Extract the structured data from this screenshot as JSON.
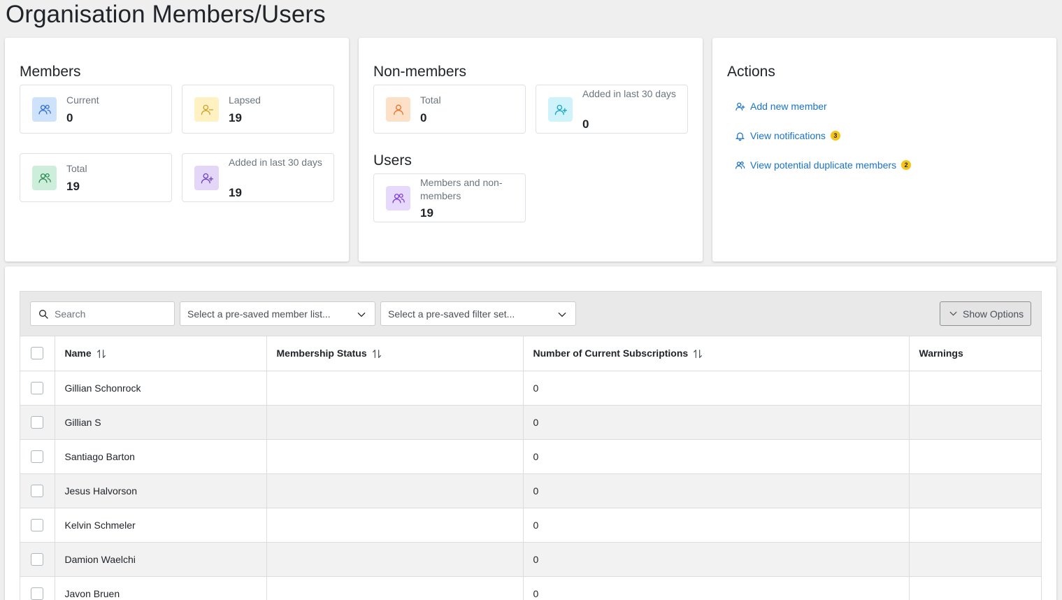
{
  "page": {
    "title": "Organisation Members/Users"
  },
  "members": {
    "heading": "Members",
    "stats": [
      {
        "label": "Current",
        "value": "0",
        "icon": "users-icon",
        "color": "#2f6fd6",
        "bg": "#cfe2fc"
      },
      {
        "label": "Lapsed",
        "value": "19",
        "icon": "user-minus-icon",
        "color": "#c9a227",
        "bg": "#fff1c2"
      },
      {
        "label": "Total",
        "value": "19",
        "icon": "users-icon",
        "color": "#2e8b57",
        "bg": "#cdeedb"
      },
      {
        "label": "Added in last 30 days",
        "value": "19",
        "icon": "user-plus-icon",
        "color": "#6f42c1",
        "bg": "#e3d6f7"
      }
    ]
  },
  "non_members": {
    "heading": "Non-members",
    "stats": [
      {
        "label": "Total",
        "value": "0",
        "icon": "user-icon",
        "color": "#e8742b",
        "bg": "#fde0c8"
      },
      {
        "label": "Added in last 30 days",
        "value": "0",
        "icon": "user-plus-icon",
        "color": "#17a2c8",
        "bg": "#cff3fa"
      }
    ]
  },
  "users": {
    "heading": "Users",
    "stats": [
      {
        "label": "Members and non-members",
        "value": "19",
        "icon": "users-icon",
        "color": "#7e3fd8",
        "bg": "#e6d9fb"
      }
    ]
  },
  "actions": {
    "heading": "Actions",
    "links": [
      {
        "label": "Add new member",
        "icon": "user-plus-icon",
        "badge": ""
      },
      {
        "label": "View notifications",
        "icon": "bell-icon",
        "badge": "3"
      },
      {
        "label": "View potential duplicate members",
        "icon": "users-icon",
        "badge": "2"
      }
    ]
  },
  "toolbar": {
    "search_placeholder": "Search",
    "member_list_placeholder": "Select a pre-saved member list...",
    "filter_set_placeholder": "Select a pre-saved filter set...",
    "options_label": "Show Options"
  },
  "table": {
    "columns": [
      "Name",
      "Membership Status",
      "Number of Current Subscriptions",
      "Warnings"
    ],
    "rows": [
      {
        "name": "Gillian Schonrock",
        "status": "",
        "subscriptions": "0",
        "warnings": ""
      },
      {
        "name": "Gillian S",
        "status": "",
        "subscriptions": "0",
        "warnings": ""
      },
      {
        "name": "Santiago Barton",
        "status": "",
        "subscriptions": "0",
        "warnings": ""
      },
      {
        "name": "Jesus Halvorson",
        "status": "",
        "subscriptions": "0",
        "warnings": ""
      },
      {
        "name": "Kelvin Schmeler",
        "status": "",
        "subscriptions": "0",
        "warnings": ""
      },
      {
        "name": "Damion Waelchi",
        "status": "",
        "subscriptions": "0",
        "warnings": ""
      },
      {
        "name": "Javon Bruen",
        "status": "",
        "subscriptions": "0",
        "warnings": ""
      }
    ]
  }
}
